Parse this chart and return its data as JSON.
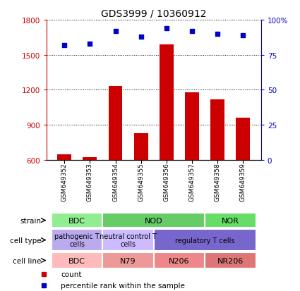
{
  "title": "GDS3999 / 10360912",
  "samples": [
    "GSM649352",
    "GSM649353",
    "GSM649354",
    "GSM649355",
    "GSM649356",
    "GSM649357",
    "GSM649358",
    "GSM649359"
  ],
  "counts": [
    645,
    620,
    1230,
    830,
    1590,
    1180,
    1120,
    960
  ],
  "percentile_ranks": [
    82,
    83,
    92,
    88,
    94,
    92,
    90,
    89
  ],
  "ylim_left": [
    600,
    1800
  ],
  "ylim_right": [
    0,
    100
  ],
  "yticks_left": [
    600,
    900,
    1200,
    1500,
    1800
  ],
  "yticks_right": [
    0,
    25,
    50,
    75,
    100
  ],
  "ytick_right_labels": [
    "0",
    "25",
    "50",
    "75",
    "100%"
  ],
  "bar_color": "#CC0000",
  "dot_color": "#0000CC",
  "left_axis_color": "#CC0000",
  "right_axis_color": "#0000CC",
  "strain_labels": [
    {
      "text": "BDC",
      "start": 0,
      "end": 2,
      "color": "#90EE90"
    },
    {
      "text": "NOD",
      "start": 2,
      "end": 6,
      "color": "#66CC66"
    },
    {
      "text": "NOR",
      "start": 6,
      "end": 8,
      "color": "#66DD66"
    }
  ],
  "cell_type_labels": [
    {
      "text": "pathogenic T\ncells",
      "start": 0,
      "end": 2,
      "color": "#BBAAEE"
    },
    {
      "text": "neutral control T\ncells",
      "start": 2,
      "end": 4,
      "color": "#CCBBFF"
    },
    {
      "text": "regulatory T cells",
      "start": 4,
      "end": 8,
      "color": "#7766CC"
    }
  ],
  "cell_line_labels": [
    {
      "text": "BDC",
      "start": 0,
      "end": 2,
      "color": "#FFBBBB"
    },
    {
      "text": "N79",
      "start": 2,
      "end": 4,
      "color": "#EE9999"
    },
    {
      "text": "N206",
      "start": 4,
      "end": 6,
      "color": "#EE8888"
    },
    {
      "text": "NR206",
      "start": 6,
      "end": 8,
      "color": "#DD7777"
    }
  ],
  "legend_items": [
    {
      "label": "count",
      "color": "#CC0000"
    },
    {
      "label": "percentile rank within the sample",
      "color": "#0000CC"
    }
  ],
  "bg_color": "#DDDDDD"
}
